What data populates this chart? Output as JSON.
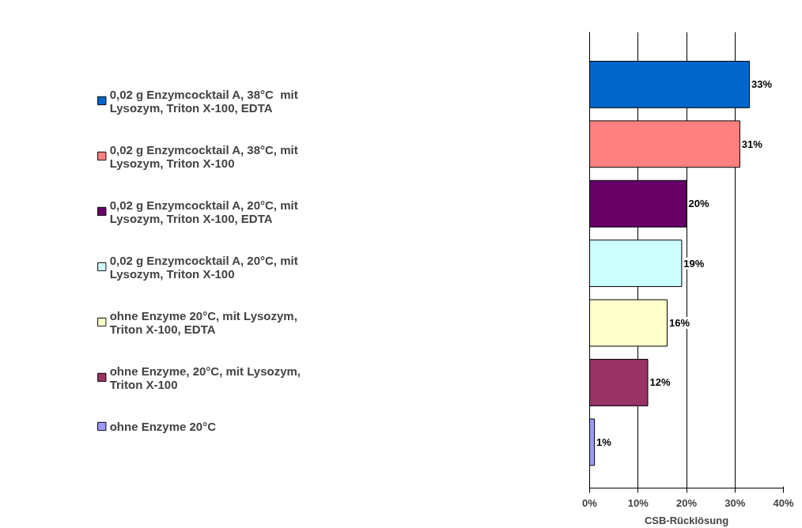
{
  "chart_data": {
    "type": "bar",
    "orientation": "horizontal",
    "xlabel": "CSB-Rücklösung",
    "categories": [
      null,
      null,
      null,
      null,
      null,
      null,
      null
    ],
    "series": [
      {
        "name": "0,02 g Enzymcocktail A, 38°C  mit Lysozym, Triton X-100, EDTA",
        "color": "#0066cc",
        "values": [
          33,
          null,
          null,
          null,
          null,
          null,
          null
        ],
        "value_labels": [
          "33%",
          null,
          null,
          null,
          null,
          null,
          null
        ]
      },
      {
        "name": "0,02 g Enzymcocktail A, 38°C, mit Lysozym, Triton X-100",
        "color": "#ff8080",
        "values": [
          null,
          31,
          null,
          null,
          null,
          null,
          null
        ],
        "value_labels": [
          null,
          "31%",
          null,
          null,
          null,
          null,
          null
        ]
      },
      {
        "name": "0,02 g Enzymcocktail A, 20°C, mit Lysozym, Triton X-100, EDTA",
        "color": "#660066",
        "values": [
          null,
          null,
          20,
          null,
          null,
          null,
          null
        ],
        "value_labels": [
          null,
          null,
          "20%",
          null,
          null,
          null,
          null
        ]
      },
      {
        "name": "0,02 g Enzymcocktail A, 20°C, mit Lysozym, Triton X-100",
        "color": "#ccffff",
        "values": [
          null,
          null,
          null,
          19,
          null,
          null,
          null
        ],
        "value_labels": [
          null,
          null,
          null,
          "19%",
          null,
          null,
          null
        ]
      },
      {
        "name": "ohne Enzyme 20°C, mit Lysozym, Triton X-100, EDTA",
        "color": "#ffffcc",
        "values": [
          null,
          null,
          null,
          null,
          16,
          null,
          null
        ],
        "value_labels": [
          null,
          null,
          null,
          null,
          "16%",
          null,
          null
        ]
      },
      {
        "name": "ohne Enzyme, 20°C, mit Lysozym, Triton X-100",
        "color": "#993366",
        "values": [
          null,
          null,
          null,
          null,
          null,
          12,
          null
        ],
        "value_labels": [
          null,
          null,
          null,
          null,
          null,
          "12%",
          null
        ]
      },
      {
        "name": "ohne Enzyme 20°C",
        "color": "#9999ff",
        "values": [
          null,
          null,
          null,
          null,
          null,
          null,
          1
        ],
        "value_labels": [
          null,
          null,
          null,
          null,
          null,
          null,
          "1%"
        ]
      }
    ],
    "xlim": [
      0,
      40
    ],
    "xticks": [
      {
        "value": 0,
        "label": "0%"
      },
      {
        "value": 10,
        "label": "10%"
      },
      {
        "value": 20,
        "label": "20%"
      },
      {
        "value": 30,
        "label": "30%"
      },
      {
        "value": 40,
        "label": "40%"
      }
    ],
    "grid": "x",
    "legend": "left",
    "tick_labels": "x"
  }
}
